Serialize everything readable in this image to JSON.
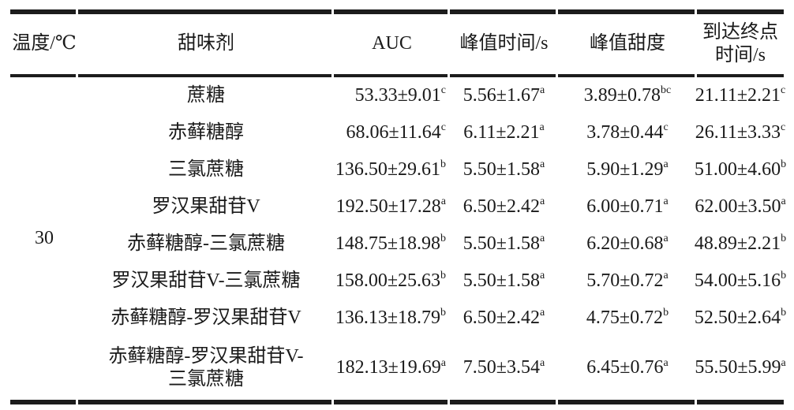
{
  "table": {
    "headers": [
      "温度/℃",
      "甜味剂",
      "AUC",
      "峰值时间/s",
      "峰值甜度",
      "到达终点\n时间/s"
    ],
    "temperature": "30",
    "rows": [
      {
        "sweetener": "蔗糖",
        "auc": "53.33±9.01",
        "auc_sup": "c",
        "peak_time": "5.56±1.67",
        "peak_time_sup": "a",
        "peak_sweetness": "3.89±0.78",
        "peak_sweetness_sup": "bc",
        "end_time": "21.11±2.21",
        "end_time_sup": "c"
      },
      {
        "sweetener": "赤藓糖醇",
        "auc": "68.06±11.64",
        "auc_sup": "c",
        "peak_time": "6.11±2.21",
        "peak_time_sup": "a",
        "peak_sweetness": "3.78±0.44",
        "peak_sweetness_sup": "c",
        "end_time": "26.11±3.33",
        "end_time_sup": "c"
      },
      {
        "sweetener": "三氯蔗糖",
        "auc": "136.50±29.61",
        "auc_sup": "b",
        "peak_time": "5.50±1.58",
        "peak_time_sup": "a",
        "peak_sweetness": "5.90±1.29",
        "peak_sweetness_sup": "a",
        "end_time": "51.00±4.60",
        "end_time_sup": "b"
      },
      {
        "sweetener": "罗汉果甜苷V",
        "auc": "192.50±17.28",
        "auc_sup": "a",
        "peak_time": "6.50±2.42",
        "peak_time_sup": "a",
        "peak_sweetness": "6.00±0.71",
        "peak_sweetness_sup": "a",
        "end_time": "62.00±3.50",
        "end_time_sup": "a"
      },
      {
        "sweetener": "赤藓糖醇-三氯蔗糖",
        "auc": "148.75±18.98",
        "auc_sup": "b",
        "peak_time": "5.50±1.58",
        "peak_time_sup": "a",
        "peak_sweetness": "6.20±0.68",
        "peak_sweetness_sup": "a",
        "end_time": "48.89±2.21",
        "end_time_sup": "b"
      },
      {
        "sweetener": "罗汉果甜苷V-三氯蔗糖",
        "auc": "158.00±25.63",
        "auc_sup": "b",
        "peak_time": "5.50±1.58",
        "peak_time_sup": "a",
        "peak_sweetness": "5.70±0.72",
        "peak_sweetness_sup": "a",
        "end_time": "54.00±5.16",
        "end_time_sup": "b"
      },
      {
        "sweetener": "赤藓糖醇-罗汉果甜苷V",
        "auc": "136.13±18.79",
        "auc_sup": "b",
        "peak_time": "6.50±2.42",
        "peak_time_sup": "a",
        "peak_sweetness": "4.75±0.72",
        "peak_sweetness_sup": "b",
        "end_time": "52.50±2.64",
        "end_time_sup": "b"
      },
      {
        "sweetener": "赤藓糖醇-罗汉果甜苷V-\n三氯蔗糖",
        "auc": "182.13±19.69",
        "auc_sup": "a",
        "peak_time": "7.50±3.54",
        "peak_time_sup": "a",
        "peak_sweetness": "6.45±0.76",
        "peak_sweetness_sup": "a",
        "end_time": "55.50±5.99",
        "end_time_sup": "a"
      }
    ]
  }
}
